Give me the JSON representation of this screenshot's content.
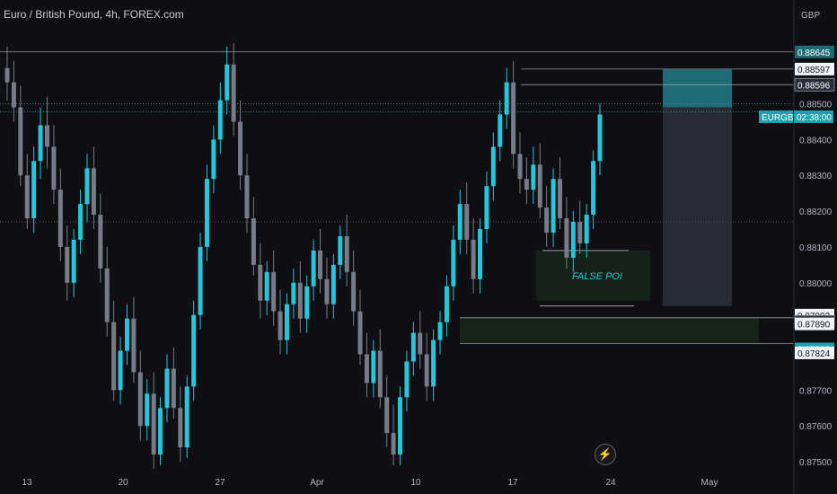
{
  "header": {
    "title": "Euro / British Pound, 4h, FOREX.com"
  },
  "axis": {
    "currency": "GBP"
  },
  "annotations": {
    "false_poi": "FALSE POI"
  },
  "colors": {
    "background": "#0f0f13",
    "bull": "#26c6da",
    "bear": "#787b86",
    "target": "#1d6c75",
    "price_tag": "#1da1b0",
    "level_line": "#9598a1"
  },
  "chart_data": {
    "type": "candlestick",
    "symbol": "EURGBP",
    "timeframe": "4h",
    "countdown": "02:38:00",
    "current_price": 0.88478,
    "ylim": [
      0.8749,
      0.8879
    ],
    "y_ticks": [
      0.875,
      0.876,
      0.877,
      0.878,
      0.879,
      0.88,
      0.881,
      0.882,
      0.883,
      0.884,
      0.885
    ],
    "y_tick_labels": [
      "0.87500",
      "0.87600",
      "0.87700",
      "0.87800",
      "0.87900",
      "0.88000",
      "0.88100",
      "0.88200",
      "0.88300",
      "0.88400",
      "0.88500"
    ],
    "x_tick_labels": [
      "13",
      "20",
      "27",
      "Apr",
      "10",
      "17",
      "24",
      "May"
    ],
    "price_tags": [
      {
        "label": "0.88645",
        "value": 0.88645,
        "style": "teal"
      },
      {
        "label": "0.88597",
        "value": 0.88597,
        "style": "light"
      },
      {
        "label": "0.88596",
        "value": 0.88596,
        "style": "dark"
      },
      {
        "label": "0.87902",
        "value": 0.87902,
        "style": "light"
      },
      {
        "label": "0.87891",
        "value": 0.87891,
        "style": "dark"
      },
      {
        "label": "0.87890",
        "value": 0.8789,
        "style": "light"
      },
      {
        "label": "0.87825",
        "value": 0.87825,
        "style": "blue"
      },
      {
        "label": "0.87824",
        "value": 0.87824,
        "style": "light"
      }
    ],
    "zones": [
      {
        "name": "target-zone",
        "from": 0.88596,
        "to": 0.8849,
        "color": "teal"
      },
      {
        "name": "position-zone",
        "from": 0.8849,
        "to": 0.87935,
        "color": "grey"
      },
      {
        "name": "demand-zone",
        "from": 0.87902,
        "to": 0.8783,
        "color": "green"
      },
      {
        "name": "false-poi-zone",
        "from": 0.8809,
        "to": 0.8795,
        "color": "green"
      }
    ],
    "ohlc": [
      [
        0.886,
        0.8866,
        0.8851,
        0.8856
      ],
      [
        0.8856,
        0.8862,
        0.8845,
        0.8849
      ],
      [
        0.8849,
        0.8855,
        0.8827,
        0.883
      ],
      [
        0.883,
        0.8836,
        0.8815,
        0.8818
      ],
      [
        0.8818,
        0.8838,
        0.8814,
        0.8834
      ],
      [
        0.8834,
        0.8849,
        0.8829,
        0.8844
      ],
      [
        0.8844,
        0.8852,
        0.8832,
        0.8838
      ],
      [
        0.8838,
        0.8844,
        0.8822,
        0.8826
      ],
      [
        0.8826,
        0.8832,
        0.8806,
        0.881
      ],
      [
        0.881,
        0.8816,
        0.8795,
        0.88
      ],
      [
        0.88,
        0.8815,
        0.8796,
        0.8812
      ],
      [
        0.8812,
        0.8826,
        0.8808,
        0.8822
      ],
      [
        0.8822,
        0.8836,
        0.8817,
        0.8832
      ],
      [
        0.8832,
        0.8838,
        0.8815,
        0.8819
      ],
      [
        0.8819,
        0.8825,
        0.88,
        0.8804
      ],
      [
        0.8804,
        0.881,
        0.8785,
        0.8789
      ],
      [
        0.8789,
        0.8795,
        0.8767,
        0.877
      ],
      [
        0.877,
        0.8785,
        0.8766,
        0.8781
      ],
      [
        0.8781,
        0.8794,
        0.8777,
        0.879
      ],
      [
        0.879,
        0.8796,
        0.8772,
        0.8775
      ],
      [
        0.8775,
        0.8781,
        0.8756,
        0.876
      ],
      [
        0.876,
        0.8773,
        0.8756,
        0.8769
      ],
      [
        0.8769,
        0.8775,
        0.8748,
        0.8752
      ],
      [
        0.8752,
        0.8768,
        0.8749,
        0.8765
      ],
      [
        0.8765,
        0.878,
        0.8761,
        0.8776
      ],
      [
        0.8776,
        0.8782,
        0.8762,
        0.8765
      ],
      [
        0.8765,
        0.8771,
        0.875,
        0.8754
      ],
      [
        0.8754,
        0.8774,
        0.8751,
        0.8771
      ],
      [
        0.8771,
        0.8795,
        0.8767,
        0.8791
      ],
      [
        0.8791,
        0.8814,
        0.8787,
        0.881
      ],
      [
        0.881,
        0.8833,
        0.8806,
        0.8829
      ],
      [
        0.8829,
        0.8844,
        0.8825,
        0.884
      ],
      [
        0.884,
        0.8856,
        0.8836,
        0.8851
      ],
      [
        0.8851,
        0.8866,
        0.8847,
        0.8861
      ],
      [
        0.8861,
        0.8867,
        0.8841,
        0.8845
      ],
      [
        0.8845,
        0.8851,
        0.8826,
        0.883
      ],
      [
        0.883,
        0.8836,
        0.8814,
        0.8818
      ],
      [
        0.8818,
        0.8824,
        0.8802,
        0.8805
      ],
      [
        0.8805,
        0.8811,
        0.879,
        0.8795
      ],
      [
        0.8795,
        0.8806,
        0.8791,
        0.8803
      ],
      [
        0.8803,
        0.8809,
        0.8788,
        0.8792
      ],
      [
        0.8792,
        0.8798,
        0.878,
        0.8784
      ],
      [
        0.8784,
        0.8797,
        0.878,
        0.8794
      ],
      [
        0.8794,
        0.8804,
        0.879,
        0.88
      ],
      [
        0.88,
        0.8806,
        0.8786,
        0.879
      ],
      [
        0.879,
        0.8802,
        0.8786,
        0.8799
      ],
      [
        0.8799,
        0.8812,
        0.8795,
        0.8809
      ],
      [
        0.8809,
        0.8815,
        0.8797,
        0.8801
      ],
      [
        0.8801,
        0.8807,
        0.879,
        0.8794
      ],
      [
        0.8794,
        0.8808,
        0.879,
        0.8805
      ],
      [
        0.8805,
        0.8816,
        0.8801,
        0.8813
      ],
      [
        0.8813,
        0.8819,
        0.8799,
        0.8803
      ],
      [
        0.8803,
        0.8809,
        0.8788,
        0.8792
      ],
      [
        0.8792,
        0.8798,
        0.8777,
        0.878
      ],
      [
        0.878,
        0.8786,
        0.8768,
        0.8772
      ],
      [
        0.8772,
        0.8784,
        0.8768,
        0.8781
      ],
      [
        0.8781,
        0.8787,
        0.8765,
        0.8768
      ],
      [
        0.8768,
        0.8774,
        0.8754,
        0.8758
      ],
      [
        0.8758,
        0.8766,
        0.8749,
        0.8752
      ],
      [
        0.8752,
        0.8771,
        0.8749,
        0.8768
      ],
      [
        0.8768,
        0.8781,
        0.8764,
        0.8778
      ],
      [
        0.8778,
        0.8789,
        0.8774,
        0.8786
      ],
      [
        0.8786,
        0.8792,
        0.8776,
        0.878
      ],
      [
        0.878,
        0.8786,
        0.8767,
        0.8771
      ],
      [
        0.8771,
        0.8787,
        0.8767,
        0.8784
      ],
      [
        0.8784,
        0.8792,
        0.878,
        0.8789
      ],
      [
        0.8789,
        0.8802,
        0.8785,
        0.8799
      ],
      [
        0.8799,
        0.8816,
        0.8795,
        0.8812
      ],
      [
        0.8812,
        0.8826,
        0.8808,
        0.8822
      ],
      [
        0.8822,
        0.8828,
        0.8808,
        0.8812
      ],
      [
        0.8812,
        0.8818,
        0.8797,
        0.8801
      ],
      [
        0.8801,
        0.8818,
        0.8797,
        0.8815
      ],
      [
        0.8815,
        0.8831,
        0.8811,
        0.8827
      ],
      [
        0.8827,
        0.8842,
        0.8823,
        0.8838
      ],
      [
        0.8838,
        0.8851,
        0.8834,
        0.8847
      ],
      [
        0.8847,
        0.886,
        0.8843,
        0.8856
      ],
      [
        0.8856,
        0.8862,
        0.8832,
        0.8836
      ],
      [
        0.8836,
        0.8842,
        0.8825,
        0.8829
      ],
      [
        0.8829,
        0.8835,
        0.8822,
        0.8826
      ],
      [
        0.8826,
        0.8838,
        0.8822,
        0.8833
      ],
      [
        0.8833,
        0.8839,
        0.8818,
        0.8821
      ],
      [
        0.8821,
        0.8827,
        0.881,
        0.8814
      ],
      [
        0.8814,
        0.8832,
        0.881,
        0.8829
      ],
      [
        0.8829,
        0.8835,
        0.8815,
        0.8818
      ],
      [
        0.8818,
        0.8824,
        0.8804,
        0.8807
      ],
      [
        0.8807,
        0.882,
        0.8803,
        0.8817
      ],
      [
        0.8817,
        0.8823,
        0.8808,
        0.8811
      ],
      [
        0.8811,
        0.8822,
        0.8807,
        0.8819
      ],
      [
        0.8819,
        0.8837,
        0.8815,
        0.8834
      ],
      [
        0.8834,
        0.885,
        0.883,
        0.8847
      ]
    ]
  }
}
